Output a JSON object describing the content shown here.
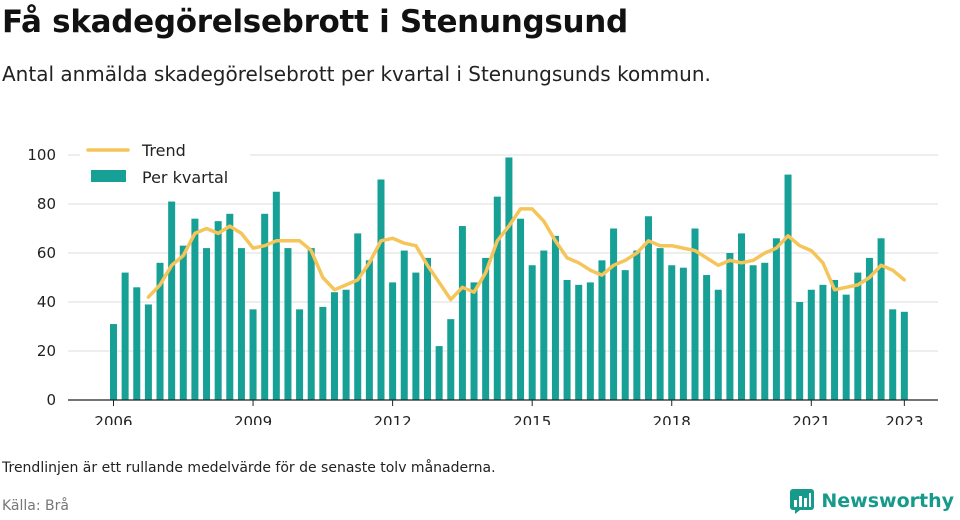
{
  "title": "Få skadegörelsebrott i Stenungsund",
  "subtitle": "Antal anmälda skadegörelsebrott per kvartal i Stenungsunds kommun.",
  "note": "Trendlinjen är ett rullande medelvärde för de senaste tolv månaderna.",
  "source": "Källa: Brå",
  "brand": {
    "name": "Newsworthy",
    "icon": "newsworthy-logo-icon"
  },
  "colors": {
    "bar": "#16a096",
    "trend": "#f5c55a",
    "grid": "#dddddd",
    "brand": "#159a8c"
  },
  "chart_data": {
    "type": "bar",
    "x_start": "2006 Q1",
    "x_ticks": [
      "2006",
      "2009",
      "2012",
      "2015",
      "2018",
      "2021",
      "2023"
    ],
    "ylim": [
      0,
      100
    ],
    "y_ticks": [
      0,
      20,
      40,
      60,
      80,
      100
    ],
    "grid": true,
    "legend_position": "top-left",
    "series": [
      {
        "name": "Per kvartal",
        "type": "bar",
        "values": [
          31,
          52,
          46,
          39,
          56,
          81,
          63,
          74,
          62,
          73,
          76,
          62,
          37,
          76,
          85,
          62,
          37,
          62,
          38,
          44,
          45,
          68,
          57,
          90,
          48,
          61,
          52,
          58,
          22,
          33,
          71,
          48,
          58,
          83,
          99,
          74,
          55,
          61,
          67,
          49,
          47,
          48,
          57,
          70,
          53,
          61,
          75,
          62,
          55,
          54,
          70,
          51,
          45,
          60,
          68,
          55,
          56,
          66,
          92,
          40,
          45,
          47,
          49,
          43,
          52,
          58,
          66,
          37,
          36
        ],
        "x_start": "2006 Q1"
      },
      {
        "name": "Trend",
        "type": "line",
        "values": [
          42,
          47,
          55,
          59,
          68,
          70,
          68,
          71,
          68,
          62,
          63,
          65,
          65,
          65,
          61,
          50,
          45,
          47,
          49,
          56,
          65,
          66,
          64,
          63,
          55,
          48,
          41,
          46,
          44,
          52,
          65,
          71,
          78,
          78,
          73,
          65,
          58,
          56,
          53,
          51,
          55,
          57,
          60,
          65,
          63,
          63,
          62,
          61,
          58,
          55,
          57,
          56,
          57,
          60,
          62,
          67,
          63,
          61,
          56,
          45,
          46,
          47,
          50,
          55,
          53,
          49
        ],
        "x_start": "2006 Q4"
      }
    ]
  }
}
